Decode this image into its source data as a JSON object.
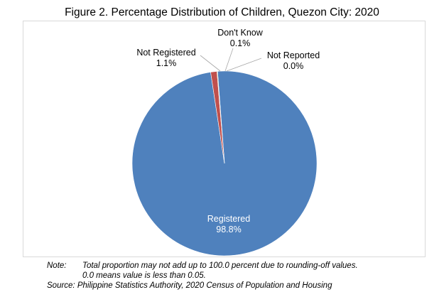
{
  "chart_data": {
    "type": "pie",
    "title": "Figure 2. Percentage Distribution of Children, Quezon City: 2020",
    "slices": [
      {
        "label": "Registered",
        "value": 98.8,
        "value_label": "98.8%",
        "color": "#4f81bd"
      },
      {
        "label": "Not Registered",
        "value": 1.1,
        "value_label": "1.1%",
        "color": "#c0504d"
      },
      {
        "label": "Don't Know",
        "value": 0.1,
        "value_label": "0.1%",
        "color": "#9bbb59"
      },
      {
        "label": "Not Reported",
        "value": 0.0,
        "value_label": "0.0%",
        "color": "#8064a2"
      }
    ],
    "legend": "none",
    "data_labels": "outside with leader lines; inside for largest slice"
  },
  "notes": {
    "label": "Note:",
    "lines": [
      "Total proportion may not add up to 100.0 percent due to rounding-off values.",
      "0.0 means value is less than 0.05."
    ],
    "source": "Source: Philippine Statistics Authority, 2020 Census of Population and Housing"
  }
}
